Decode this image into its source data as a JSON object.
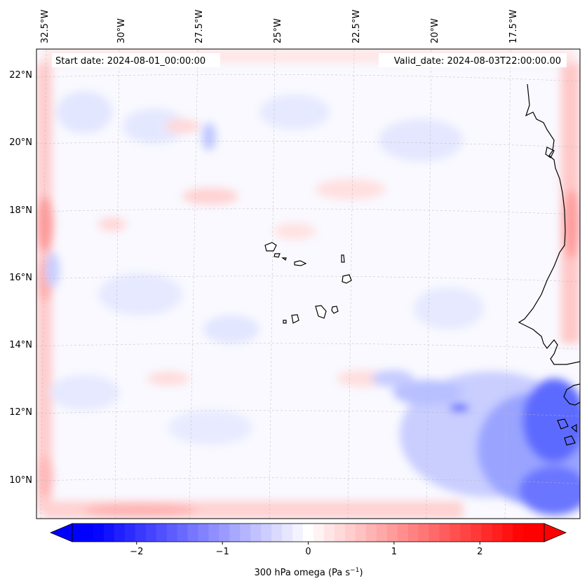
{
  "map": {
    "start_label": "Start date:",
    "start_value": "2024-08-01_00:00:00",
    "valid_label": "Valid_date:",
    "valid_value": "2024-08-03T22:00:00.00",
    "lon_ticks": [
      "32.5°W",
      "30°W",
      "27.5°W",
      "25°W",
      "22.5°W",
      "20°W",
      "17.5°W"
    ],
    "lat_ticks": [
      "22°N",
      "20°N",
      "18°N",
      "16°N",
      "14°N",
      "12°N",
      "10°N"
    ],
    "colors": {
      "negative": "#0000ff",
      "zero": "#ffffff",
      "positive": "#ff0000",
      "coast": "#000000"
    }
  },
  "colorbar": {
    "ticks": [
      "−2",
      "−1",
      "0",
      "1",
      "2"
    ],
    "tick_values": [
      -2,
      -1,
      0,
      1,
      2
    ],
    "range": [
      -2.75,
      2.75
    ],
    "label_main": "300 hPa omega (Pa s",
    "label_exp": "−1",
    "label_end": ")",
    "levels": 45
  }
}
